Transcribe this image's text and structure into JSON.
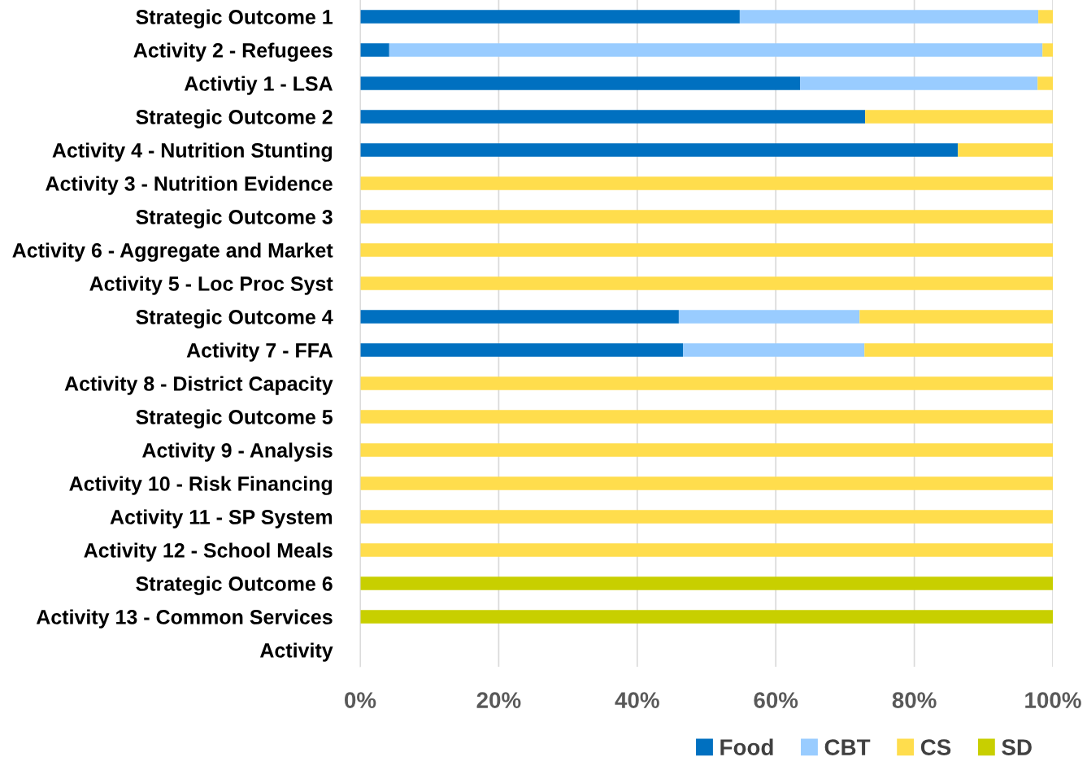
{
  "chart_data": {
    "type": "bar",
    "orientation": "horizontal",
    "stacked": true,
    "categories": [
      "Strategic Outcome 1",
      "Activity 2 - Refugees",
      "Activtiy 1 - LSA",
      "Strategic Outcome 2",
      "Activity 4 - Nutrition Stunting",
      "Activity 3 - Nutrition Evidence",
      "Strategic Outcome 3",
      "Activity 6 - Aggregate and Market",
      "Activity 5 - Loc Proc Syst",
      "Strategic Outcome 4",
      "Activity 7 - FFA",
      "Activity 8 - District Capacity",
      "Strategic Outcome 5",
      "Activity 9 - Analysis",
      "Activity 10 - Risk Financing",
      "Activity 11 - SP System",
      "Activity 12 - School Meals",
      "Strategic Outcome 6",
      "Activity 13 - Common Services",
      "Activity"
    ],
    "series": [
      {
        "name": "Food",
        "color": "#0070c0",
        "values": [
          54.8,
          4.2,
          63.5,
          72.9,
          86.3,
          0,
          0,
          0,
          0,
          46.0,
          46.6,
          0,
          0,
          0,
          0,
          0,
          0,
          0,
          0,
          null
        ]
      },
      {
        "name": "CBT",
        "color": "#99ccff",
        "values": [
          43.1,
          94.3,
          34.3,
          0,
          0,
          0,
          0,
          0,
          0,
          26.1,
          26.2,
          0,
          0,
          0,
          0,
          0,
          0,
          0,
          0,
          null
        ]
      },
      {
        "name": "CS",
        "color": "#ffdd4d",
        "values": [
          2.1,
          1.5,
          2.2,
          27.1,
          13.7,
          100,
          100,
          100,
          100,
          27.9,
          27.2,
          100,
          100,
          100,
          100,
          100,
          100,
          0,
          0,
          null
        ]
      },
      {
        "name": "SD",
        "color": "#c8cf00",
        "values": [
          0,
          0,
          0,
          0,
          0,
          0,
          0,
          0,
          0,
          0,
          0,
          0,
          0,
          0,
          0,
          0,
          0,
          100,
          100,
          null
        ]
      }
    ],
    "xlim": [
      0,
      100
    ],
    "xticks": [
      {
        "value": 0,
        "label": "0%"
      },
      {
        "value": 20,
        "label": "20%"
      },
      {
        "value": 40,
        "label": "40%"
      },
      {
        "value": 60,
        "label": "60%"
      },
      {
        "value": 80,
        "label": "80%"
      },
      {
        "value": 100,
        "label": "100%"
      }
    ],
    "grid": "x",
    "legend": "bottom right"
  }
}
